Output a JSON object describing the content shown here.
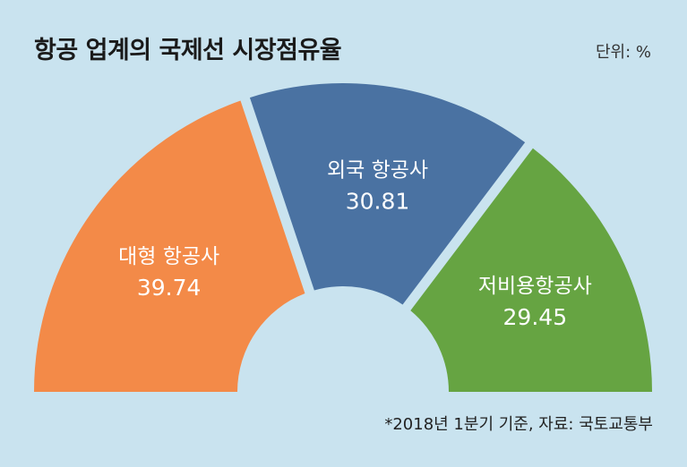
{
  "title": "항공 업계의 국제선 시장점유율",
  "unit_label": "단위: %",
  "source_note": "*2018년 1분기 기준, 자료: 국토교통부",
  "colors": {
    "background": "#c9e3ef",
    "slice_1": "#f38a48",
    "slice_2": "#4a72a2",
    "slice_3": "#66a442"
  },
  "chart_data": {
    "type": "pie",
    "style": "half-donut",
    "title": "항공 업계의 국제선 시장점유율",
    "unit": "%",
    "categories": [
      "대형 항공사",
      "외국 항공사",
      "저비용항공사"
    ],
    "values": [
      39.74,
      30.81,
      29.45
    ],
    "value_labels": [
      "39.74",
      "30.81",
      "29.45"
    ]
  }
}
